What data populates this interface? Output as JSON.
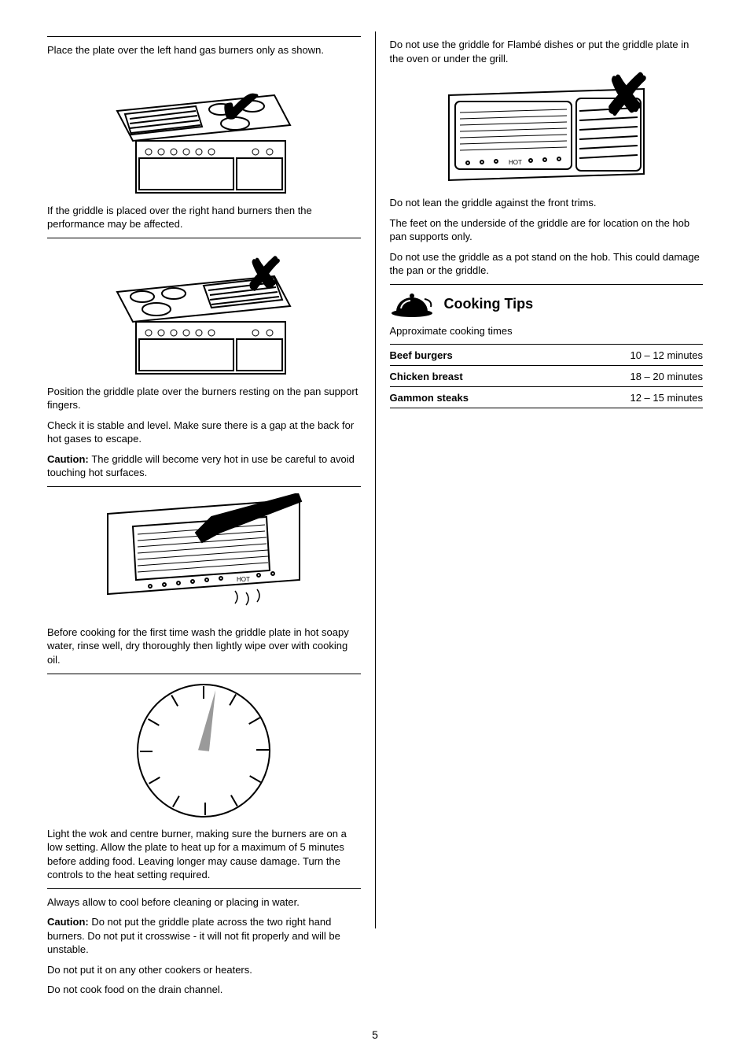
{
  "page_number": "5",
  "left": {
    "p1": "Place the plate over the left hand gas burners only as shown.",
    "img1": {
      "alt": "cooker with griddle over left burners — correct",
      "mark": "✔"
    },
    "p2": "If the griddle is placed over the right hand burners then the performance may be affected.",
    "img2": {
      "alt": "cooker with griddle over right burners — incorrect",
      "mark": "✘"
    },
    "p3a": "Position the griddle plate over the burners resting on the pan support fingers.",
    "p3b": "Check it is stable and level. Make sure there is a gap at the back for hot gases to escape.",
    "p3c_prefix": "Caution: ",
    "p3c": "The griddle will become very hot in use be careful to avoid touching hot surfaces.",
    "p4": "Before cooking for the first time wash the griddle plate in hot soapy water, rinse well, dry thoroughly then lightly wipe over with cooking oil.",
    "p5": "Light the wok and centre burner, making sure the burners are on a low setting. Allow the plate to heat up for a maximum of 5 minutes before adding food. Leaving longer may cause damage. Turn the controls to the heat setting required.",
    "p6a": "Always allow to cool before cleaning or placing in water.",
    "p6b_prefix": "Caution: ",
    "p6b": "Do not put the griddle plate across the two right hand burners. Do not put it crosswise - it will not fit properly and will be unstable.",
    "p6c": "Do not put it on any other cookers or heaters.",
    "p7": "Do not cook food on the drain channel.",
    "img3": {
      "alt": "spatula on hot griddle plate"
    },
    "img4": {
      "alt": "clock showing short preheat time"
    }
  },
  "right": {
    "p1": "Do not use the griddle for Flambé dishes or put the griddle plate in the oven or under the grill.",
    "img1": {
      "alt": "griddle plate on pan support — do not",
      "mark": "✘"
    },
    "p2": "Do not lean the griddle against the front trims.",
    "p3": "The feet on the underside of the griddle are for location on the hob pan supports only.",
    "p4": "Do not use the griddle as a pot stand on the hob. This could damage the pan or the griddle.",
    "cooking_section": {
      "title": "Cooking Tips",
      "intro": "Approximate cooking times",
      "rows": [
        {
          "food": "Beef burgers",
          "time": "10 – 12 minutes"
        },
        {
          "food": "Chicken breast",
          "time": "18 – 20 minutes"
        },
        {
          "food": "Gammon steaks",
          "time": "12 – 15 minutes"
        }
      ]
    }
  }
}
